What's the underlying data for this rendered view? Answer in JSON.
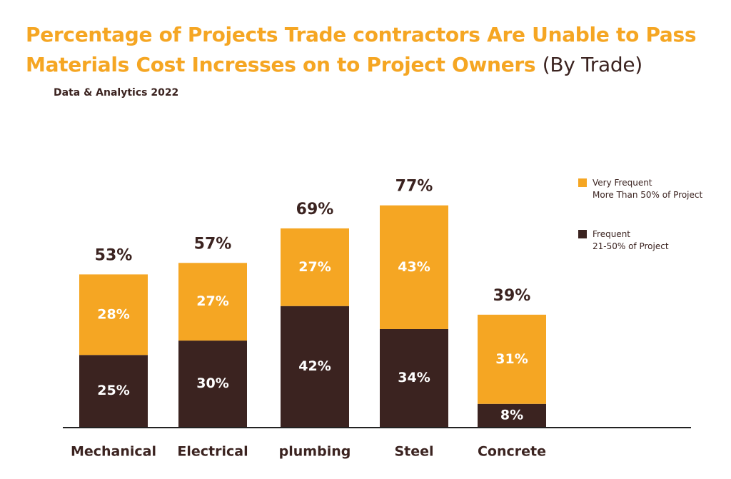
{
  "header": {
    "title_main": "Percentage of Projects Trade contractors Are Unable to Pass Materials Cost Incresses on to Project Owners",
    "title_suffix": "(By Trade)",
    "subtitle": "Data & Analytics 2022"
  },
  "colors": {
    "very_frequent": "#F5A623",
    "frequent": "#3B2320",
    "axis": "#222222",
    "label_dark": "#3B2320",
    "label_light": "#ffffff"
  },
  "legend": {
    "items": [
      {
        "line1": "Very Frequent",
        "line2": "More Than 50% of Project"
      },
      {
        "line1": "Frequent",
        "line2": "21-50% of Project"
      }
    ]
  },
  "chart_data": {
    "type": "bar",
    "stacked": true,
    "categories": [
      "Mechanical",
      "Electrical",
      "plumbing",
      "Steel",
      "Concrete"
    ],
    "series": [
      {
        "name": "Frequent 21-50% of Project",
        "values": [
          25,
          30,
          42,
          34,
          8
        ],
        "labels": [
          "25%",
          "30%",
          "42%",
          "34%",
          "8%"
        ]
      },
      {
        "name": "Very Frequent More Than 50% of Project",
        "values": [
          28,
          27,
          27,
          43,
          31
        ],
        "labels": [
          "28%",
          "27%",
          "27%",
          "43%",
          "31%"
        ]
      }
    ],
    "totals": [
      53,
      57,
      69,
      77,
      39
    ],
    "total_labels": [
      "53%",
      "57%",
      "69%",
      "77%",
      "39%"
    ],
    "ylim": [
      0,
      100
    ],
    "grid": false,
    "legend_position": "right"
  }
}
